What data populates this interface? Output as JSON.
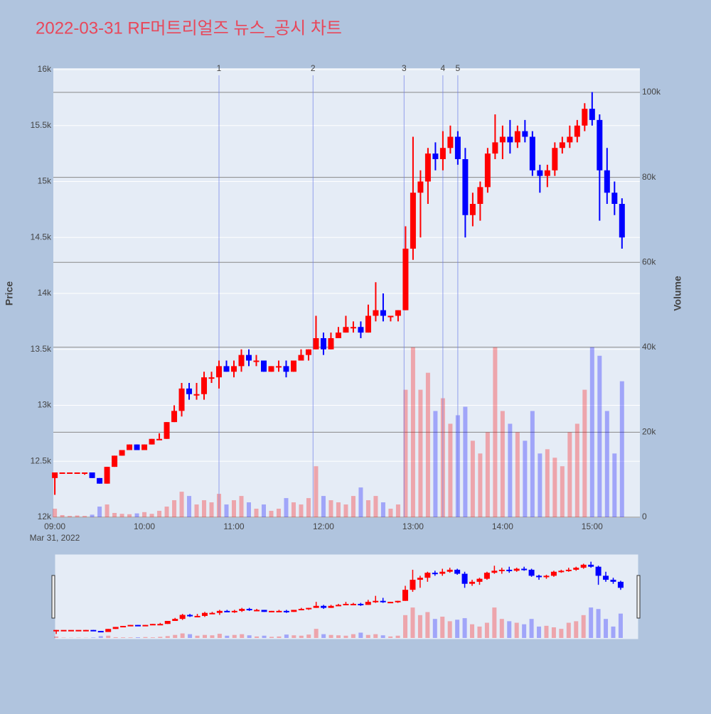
{
  "chart_data": {
    "type": "candlestick",
    "title": "2022-03-31 RF머트리얼즈 뉴스_공시 차트",
    "y_label": "Price",
    "y2_label": "Volume",
    "x_sublabel": "Mar 31, 2022",
    "increasing_color": "#ff0000",
    "decreasing_color": "#0000ff",
    "grid": true,
    "range_slider": true,
    "xlim": [
      "08:59",
      "15:32"
    ],
    "xticks": [
      "09:00",
      "10:00",
      "11:00",
      "12:00",
      "13:00",
      "14:00",
      "15:00"
    ],
    "ylim": [
      12000,
      16000
    ],
    "yticks": [
      {
        "value": 12000,
        "label": "12k"
      },
      {
        "value": 12500,
        "label": "12.5k"
      },
      {
        "value": 13000,
        "label": "13k"
      },
      {
        "value": 13500,
        "label": "13.5k"
      },
      {
        "value": 14000,
        "label": "14k"
      },
      {
        "value": 14500,
        "label": "14.5k"
      },
      {
        "value": 15000,
        "label": "15k"
      },
      {
        "value": 15500,
        "label": "15.5k"
      },
      {
        "value": 16000,
        "label": "16k"
      }
    ],
    "y2lim": [
      0,
      105350
    ],
    "y2ticks": [
      0,
      {
        "value": 20000,
        "label": "20k"
      },
      {
        "value": 40000,
        "label": "40k"
      },
      {
        "value": 60000,
        "label": "60k"
      },
      {
        "value": 80000,
        "label": "80k"
      },
      {
        "value": 100000,
        "label": "100k"
      }
    ],
    "annotations": [
      {
        "x": "10:50",
        "label": "1"
      },
      {
        "x": "11:53",
        "label": "2"
      },
      {
        "x": "12:54",
        "label": "3"
      },
      {
        "x": "13:20",
        "label": "4"
      },
      {
        "x": "13:30",
        "label": "5"
      }
    ],
    "x": [
      "09:00",
      "09:05",
      "09:10",
      "09:15",
      "09:20",
      "09:25",
      "09:30",
      "09:35",
      "09:40",
      "09:45",
      "09:50",
      "09:55",
      "10:00",
      "10:05",
      "10:10",
      "10:15",
      "10:20",
      "10:25",
      "10:30",
      "10:35",
      "10:40",
      "10:45",
      "10:50",
      "10:55",
      "11:00",
      "11:05",
      "11:10",
      "11:15",
      "11:20",
      "11:25",
      "11:30",
      "11:35",
      "11:40",
      "11:45",
      "11:50",
      "11:55",
      "12:00",
      "12:05",
      "12:10",
      "12:15",
      "12:20",
      "12:25",
      "12:30",
      "12:35",
      "12:40",
      "12:45",
      "12:50",
      "12:55",
      "13:00",
      "13:05",
      "13:10",
      "13:15",
      "13:20",
      "13:25",
      "13:30",
      "13:35",
      "13:40",
      "13:45",
      "13:50",
      "13:55",
      "14:00",
      "14:05",
      "14:10",
      "14:15",
      "14:20",
      "14:25",
      "14:30",
      "14:35",
      "14:40",
      "14:45",
      "14:50",
      "14:55",
      "15:00",
      "15:05",
      "15:10",
      "15:15",
      "15:20"
    ],
    "open": [
      12350,
      12400,
      12400,
      12400,
      12400,
      12400,
      12350,
      12300,
      12450,
      12550,
      12600,
      12650,
      12600,
      12650,
      12700,
      12700,
      12850,
      12950,
      13150,
      13100,
      13100,
      13250,
      13250,
      13350,
      13300,
      13350,
      13450,
      13400,
      13400,
      13300,
      13350,
      13350,
      13300,
      13400,
      13450,
      13500,
      13600,
      13500,
      13600,
      13650,
      13700,
      13700,
      13650,
      13800,
      13850,
      13800,
      13800,
      13850,
      14400,
      14900,
      15000,
      15250,
      15200,
      15300,
      15400,
      15200,
      14700,
      14800,
      14950,
      15250,
      15350,
      15400,
      15350,
      15450,
      15400,
      15100,
      15050,
      15100,
      15300,
      15350,
      15400,
      15500,
      15650,
      15550,
      15100,
      14900,
      14800
    ],
    "high": [
      12400,
      12400,
      12400,
      12400,
      12400,
      12400,
      12350,
      12450,
      12550,
      12600,
      12650,
      12650,
      12650,
      12700,
      12750,
      12850,
      13000,
      13200,
      13200,
      13200,
      13300,
      13300,
      13400,
      13400,
      13400,
      13500,
      13500,
      13450,
      13400,
      13350,
      13400,
      13400,
      13400,
      13500,
      13500,
      13800,
      13650,
      13650,
      13700,
      13800,
      13750,
      13750,
      13900,
      14100,
      14000,
      13800,
      13850,
      14600,
      15400,
      15100,
      15300,
      15350,
      15450,
      15500,
      15450,
      15300,
      14900,
      15000,
      15300,
      15600,
      15500,
      15550,
      15500,
      15550,
      15450,
      15150,
      15150,
      15350,
      15400,
      15500,
      15550,
      15700,
      15800,
      15600,
      15300,
      15000,
      14850
    ],
    "low": [
      12200,
      12400,
      12400,
      12400,
      12380,
      12350,
      12300,
      12300,
      12450,
      12550,
      12600,
      12600,
      12600,
      12650,
      12700,
      12700,
      12850,
      12900,
      13050,
      13050,
      13050,
      13200,
      13150,
      13300,
      13250,
      13300,
      13350,
      13350,
      13300,
      13300,
      13300,
      13250,
      13300,
      13400,
      13400,
      13500,
      13450,
      13500,
      13600,
      13650,
      13650,
      13600,
      13650,
      13750,
      13750,
      13750,
      13750,
      13850,
      14300,
      14500,
      14800,
      15100,
      15100,
      15250,
      15150,
      14500,
      14600,
      14650,
      14900,
      15200,
      15200,
      15250,
      15300,
      15350,
      15050,
      14900,
      14950,
      15050,
      15250,
      15300,
      15350,
      15450,
      15500,
      14650,
      14800,
      14700,
      14400
    ],
    "close": [
      12400,
      12400,
      12400,
      12400,
      12400,
      12350,
      12300,
      12450,
      12550,
      12600,
      12650,
      12600,
      12650,
      12700,
      12700,
      12850,
      12950,
      13150,
      13100,
      13100,
      13250,
      13250,
      13350,
      13300,
      13350,
      13450,
      13400,
      13400,
      13300,
      13350,
      13350,
      13300,
      13400,
      13450,
      13500,
      13600,
      13500,
      13600,
      13650,
      13700,
      13700,
      13650,
      13800,
      13850,
      13800,
      13800,
      13850,
      14400,
      14900,
      15000,
      15250,
      15200,
      15300,
      15400,
      15200,
      14700,
      14800,
      14950,
      15250,
      15350,
      15400,
      15350,
      15450,
      15400,
      15100,
      15050,
      15100,
      15300,
      15350,
      15400,
      15500,
      15650,
      15550,
      15100,
      14900,
      14800,
      14500
    ],
    "volume": [
      2000,
      500,
      300,
      400,
      300,
      600,
      2500,
      3000,
      1000,
      800,
      700,
      900,
      1200,
      800,
      1500,
      2500,
      4000,
      6000,
      5000,
      3000,
      4000,
      3500,
      5500,
      3000,
      4000,
      5000,
      3500,
      2000,
      3000,
      1500,
      2000,
      4500,
      3500,
      3000,
      4500,
      12000,
      5000,
      4000,
      3500,
      3000,
      5000,
      7000,
      4000,
      5000,
      3500,
      2000,
      3000,
      30000,
      40000,
      30000,
      34000,
      25000,
      28000,
      22000,
      24000,
      26000,
      18000,
      15000,
      20000,
      40000,
      25000,
      22000,
      20000,
      18000,
      25000,
      15000,
      16000,
      14000,
      12000,
      20000,
      22000,
      30000,
      40000,
      38000,
      25000,
      15000,
      32000
    ]
  }
}
